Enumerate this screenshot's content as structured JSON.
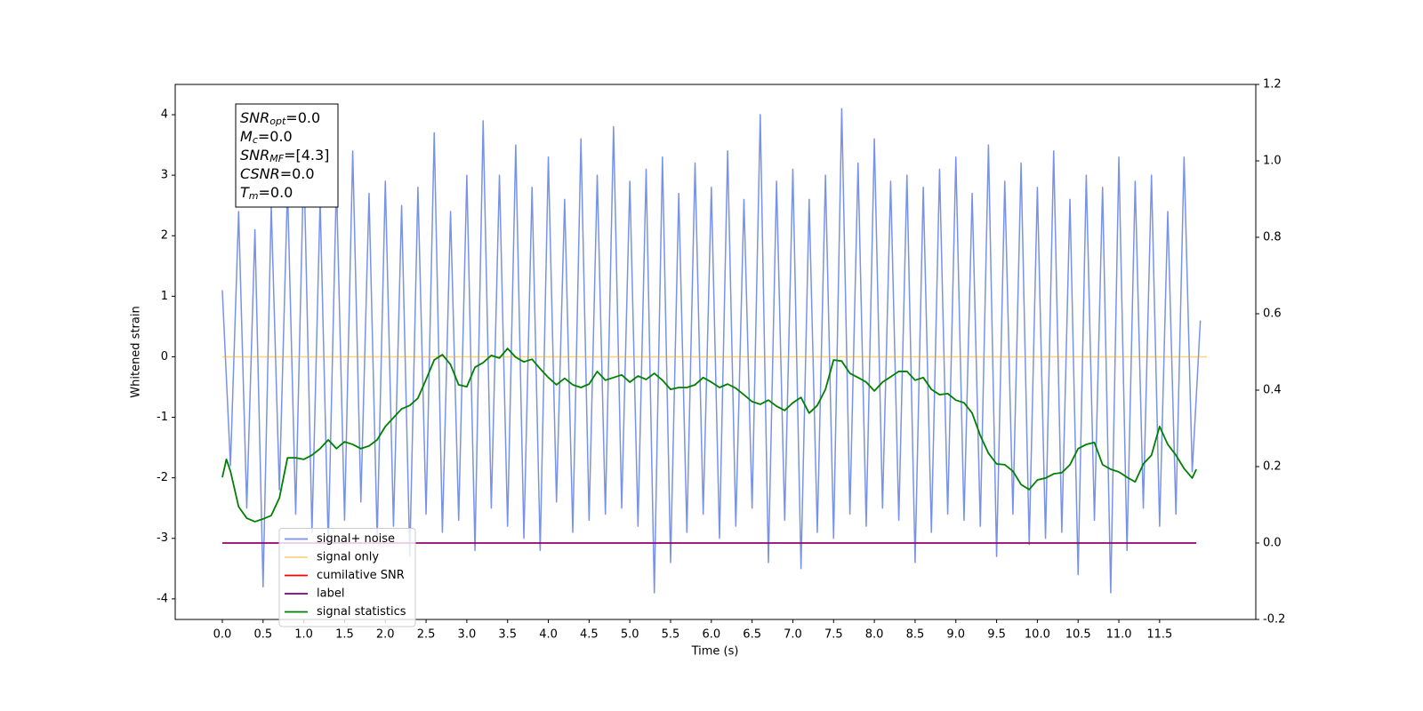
{
  "chart_data": {
    "type": "line",
    "xlabel": "Time (s)",
    "ylabel": "Whitened strain",
    "xlim": [
      -0.578,
      12.68
    ],
    "ylim": [
      -4.34,
      4.5
    ],
    "y2lim": [
      -0.2,
      1.2
    ],
    "xticks": [
      {
        "value": 0,
        "label": "0.0"
      },
      {
        "value": 0.5,
        "label": "0.5"
      },
      {
        "value": 1,
        "label": "1.0"
      },
      {
        "value": 1.5,
        "label": "1.5"
      },
      {
        "value": 2,
        "label": "2.0"
      },
      {
        "value": 2.5,
        "label": "2.5"
      },
      {
        "value": 3,
        "label": "3.0"
      },
      {
        "value": 3.5,
        "label": "3.5"
      },
      {
        "value": 4,
        "label": "4.0"
      },
      {
        "value": 4.5,
        "label": "4.5"
      },
      {
        "value": 5,
        "label": "5.0"
      },
      {
        "value": 5.5,
        "label": "5.5"
      },
      {
        "value": 6,
        "label": "6.0"
      },
      {
        "value": 6.5,
        "label": "6.5"
      },
      {
        "value": 7,
        "label": "7.0"
      },
      {
        "value": 7.5,
        "label": "7.5"
      },
      {
        "value": 8,
        "label": "8.0"
      },
      {
        "value": 8.5,
        "label": "8.5"
      },
      {
        "value": 9,
        "label": "9.0"
      },
      {
        "value": 9.5,
        "label": "9.5"
      },
      {
        "value": 10,
        "label": "10.0"
      },
      {
        "value": 10.5,
        "label": "10.5"
      },
      {
        "value": 11,
        "label": "11.0"
      },
      {
        "value": 11.5,
        "label": "11.5"
      }
    ],
    "yticks": [
      -4,
      -3,
      -2,
      -1,
      0,
      1,
      2,
      3,
      4
    ],
    "y2ticks": [
      -0.2,
      {
        "value": 0,
        "label": "0.0"
      },
      0.2,
      0.4,
      0.6,
      0.8,
      {
        "value": 1,
        "label": "1.0"
      },
      1.2
    ],
    "legend_loc": "lower left",
    "annotations": [
      {
        "main": "SNR",
        "sub": "opt",
        "rest": "=0.0"
      },
      {
        "main": "M",
        "sub": "c",
        "rest": "=0.0"
      },
      {
        "main": "SNR",
        "sub": "MF",
        "rest": "=[4.3]"
      },
      {
        "main": "CSNR",
        "rest": "=0.0"
      },
      {
        "main": "T",
        "sub": "m",
        "rest": "=0.0"
      }
    ],
    "series": [
      {
        "name": "signal+ noise",
        "color": "#7892e8",
        "x": [
          0,
          0.1,
          0.2,
          0.3,
          0.4,
          0.5,
          0.6,
          0.7,
          0.8,
          0.9,
          1,
          1.1,
          1.2,
          1.3,
          1.4,
          1.5,
          1.6,
          1.7,
          1.8,
          1.9,
          2,
          2.1,
          2.2,
          2.3,
          2.4,
          2.5,
          2.6,
          2.7,
          2.8,
          2.9,
          3,
          3.1,
          3.2,
          3.3,
          3.4,
          3.5,
          3.6,
          3.7,
          3.8,
          3.9,
          4,
          4.1,
          4.2,
          4.3,
          4.4,
          4.5,
          4.6,
          4.7,
          4.8,
          4.9,
          5,
          5.1,
          5.2,
          5.3,
          5.4,
          5.5,
          5.6,
          5.7,
          5.8,
          5.9,
          6,
          6.1,
          6.2,
          6.3,
          6.4,
          6.5,
          6.6,
          6.7,
          6.8,
          6.9,
          7,
          7.1,
          7.2,
          7.3,
          7.4,
          7.5,
          7.6,
          7.7,
          7.8,
          7.9,
          8,
          8.1,
          8.2,
          8.3,
          8.4,
          8.5,
          8.6,
          8.7,
          8.8,
          8.9,
          9,
          9.1,
          9.2,
          9.3,
          9.4,
          9.5,
          9.6,
          9.7,
          9.8,
          9.9,
          10,
          10.1,
          10.2,
          10.3,
          10.4,
          10.5,
          10.6,
          10.7,
          10.8,
          10.9,
          11,
          11.1,
          11.2,
          11.3,
          11.4,
          11.5,
          11.6,
          11.7,
          11.8,
          11.9,
          12
        ],
        "values": [
          1.1,
          -1.8,
          2.4,
          -2.5,
          2.1,
          -3.8,
          2.5,
          -2.2,
          2.8,
          -2.6,
          3.3,
          -2.9,
          2.6,
          -3.1,
          2.9,
          -2.7,
          3.4,
          -2.4,
          2.7,
          -3.0,
          2.9,
          -2.8,
          2.5,
          -3.3,
          2.8,
          -2.6,
          3.7,
          -2.9,
          2.4,
          -2.7,
          3.0,
          -3.2,
          3.9,
          -2.5,
          3.0,
          -2.8,
          3.5,
          -3.0,
          2.8,
          -3.2,
          3.3,
          -2.4,
          2.6,
          -2.9,
          3.6,
          -2.7,
          3.0,
          -2.6,
          3.8,
          -2.5,
          2.9,
          -2.8,
          3.1,
          -3.9,
          3.3,
          -3.4,
          2.7,
          -2.9,
          3.2,
          -2.6,
          2.8,
          -3.0,
          3.4,
          -2.8,
          2.6,
          -2.5,
          4.0,
          -3.4,
          2.9,
          -2.7,
          3.1,
          -3.5,
          2.6,
          -2.9,
          3.0,
          -3.0,
          4.1,
          -2.6,
          3.2,
          -2.8,
          3.6,
          -2.5,
          2.9,
          -2.7,
          3.0,
          -3.4,
          2.8,
          -2.9,
          3.1,
          -2.6,
          3.3,
          -2.7,
          2.7,
          -2.8,
          3.5,
          -3.3,
          2.9,
          -2.6,
          3.2,
          -3.1,
          2.8,
          -3.0,
          3.4,
          -2.9,
          2.6,
          -3.6,
          3.0,
          -2.7,
          2.8,
          -3.9,
          3.3,
          -3.2,
          2.9,
          -2.5,
          3.0,
          -2.8,
          2.4,
          -2.6,
          3.3,
          -1.9,
          0.6
        ]
      },
      {
        "name": "signal only",
        "color": "#ffa500",
        "x": [
          0,
          12.08
        ],
        "values": [
          0,
          0
        ]
      },
      {
        "name": "cumilative SNR",
        "color": "#ff0000",
        "axis": "y2",
        "x": [
          0,
          11.95
        ],
        "values": [
          0,
          0
        ]
      },
      {
        "name": "label",
        "color": "#800080",
        "axis": "y2",
        "x": [
          0,
          11.95
        ],
        "values": [
          0,
          0
        ]
      },
      {
        "name": "signal statistics",
        "color": "#008000",
        "axis": "y2",
        "x": [
          0,
          0.05,
          0.1,
          0.2,
          0.3,
          0.4,
          0.5,
          0.6,
          0.7,
          0.8,
          0.9,
          1,
          1.1,
          1.2,
          1.3,
          1.4,
          1.5,
          1.6,
          1.7,
          1.8,
          1.9,
          2,
          2.1,
          2.2,
          2.3,
          2.4,
          2.5,
          2.6,
          2.7,
          2.8,
          2.9,
          3,
          3.1,
          3.2,
          3.3,
          3.4,
          3.5,
          3.6,
          3.7,
          3.8,
          3.9,
          4,
          4.1,
          4.2,
          4.3,
          4.4,
          4.5,
          4.6,
          4.7,
          4.8,
          4.9,
          5,
          5.1,
          5.2,
          5.3,
          5.4,
          5.5,
          5.6,
          5.7,
          5.8,
          5.9,
          6,
          6.1,
          6.2,
          6.3,
          6.4,
          6.5,
          6.6,
          6.7,
          6.8,
          6.9,
          7,
          7.1,
          7.2,
          7.3,
          7.4,
          7.5,
          7.6,
          7.7,
          7.8,
          7.9,
          8,
          8.1,
          8.2,
          8.3,
          8.4,
          8.5,
          8.6,
          8.7,
          8.8,
          8.9,
          9,
          9.1,
          9.2,
          9.3,
          9.4,
          9.5,
          9.6,
          9.7,
          9.8,
          9.9,
          10,
          10.1,
          10.2,
          10.3,
          10.4,
          10.5,
          10.6,
          10.7,
          10.8,
          10.9,
          11,
          11.1,
          11.2,
          11.3,
          11.4,
          11.5,
          11.6,
          11.7,
          11.8,
          11.9,
          11.95
        ],
        "values": [
          0.172,
          0.219,
          0.188,
          0.095,
          0.065,
          0.056,
          0.063,
          0.072,
          0.118,
          0.223,
          0.223,
          0.219,
          0.23,
          0.247,
          0.27,
          0.247,
          0.265,
          0.258,
          0.247,
          0.254,
          0.27,
          0.305,
          0.328,
          0.351,
          0.36,
          0.379,
          0.428,
          0.479,
          0.493,
          0.467,
          0.414,
          0.409,
          0.46,
          0.472,
          0.491,
          0.484,
          0.509,
          0.486,
          0.474,
          0.481,
          0.456,
          0.433,
          0.414,
          0.431,
          0.414,
          0.407,
          0.416,
          0.449,
          0.426,
          0.433,
          0.44,
          0.421,
          0.437,
          0.428,
          0.444,
          0.426,
          0.402,
          0.407,
          0.407,
          0.414,
          0.433,
          0.421,
          0.407,
          0.416,
          0.405,
          0.388,
          0.37,
          0.363,
          0.374,
          0.358,
          0.347,
          0.367,
          0.381,
          0.34,
          0.36,
          0.402,
          0.479,
          0.476,
          0.444,
          0.433,
          0.421,
          0.398,
          0.421,
          0.435,
          0.449,
          0.449,
          0.426,
          0.433,
          0.402,
          0.388,
          0.391,
          0.374,
          0.367,
          0.34,
          0.281,
          0.235,
          0.207,
          0.205,
          0.188,
          0.153,
          0.14,
          0.165,
          0.17,
          0.181,
          0.184,
          0.205,
          0.247,
          0.258,
          0.263,
          0.205,
          0.193,
          0.186,
          0.172,
          0.16,
          0.207,
          0.23,
          0.305,
          0.258,
          0.23,
          0.195,
          0.17,
          0.193
        ]
      }
    ]
  }
}
